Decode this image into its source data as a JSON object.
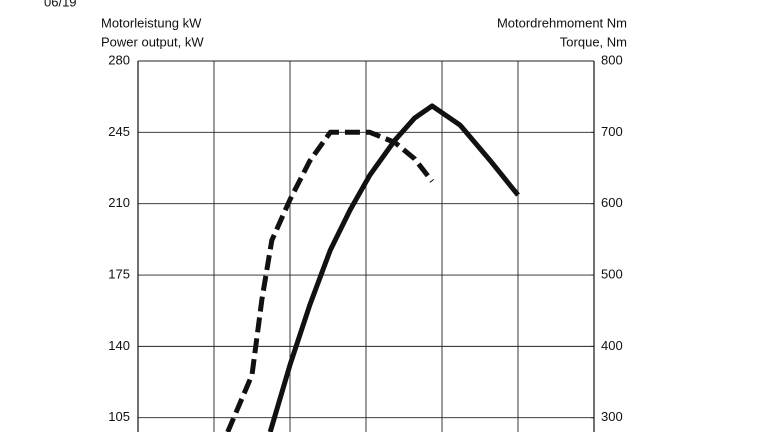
{
  "chart_data": {
    "type": "line",
    "date_label": "06/19",
    "y_label": [
      "Motorleistung kW",
      "Power output, kW"
    ],
    "y2_label": [
      "Motordrehmoment Nm",
      "Torque, Nm"
    ],
    "xlim": [
      0,
      6
    ],
    "xticks": [
      0,
      1,
      2,
      3,
      4,
      5,
      6
    ],
    "ylim": [
      98,
      280
    ],
    "yticks": [
      105,
      140,
      175,
      210,
      245,
      280
    ],
    "y2lim": [
      280,
      800
    ],
    "y2ticks": [
      300,
      400,
      500,
      600,
      700,
      800
    ],
    "grid": true,
    "series": [
      {
        "name": "Power output",
        "color": "#111111",
        "dashed": true,
        "axis": "y",
        "x": [
          1.18,
          1.5,
          1.63,
          1.76,
          2.0,
          2.26,
          2.53,
          3.05,
          3.38,
          3.64,
          3.87
        ],
        "values": [
          98,
          126,
          163,
          192,
          212,
          231,
          245,
          245,
          240,
          232,
          221
        ]
      },
      {
        "name": "Torque",
        "color": "#111111",
        "dashed": false,
        "axis": "y2",
        "x": [
          1.74,
          2.0,
          2.26,
          2.53,
          2.79,
          3.05,
          3.38,
          3.64,
          3.87,
          4.24,
          4.63,
          5.0
        ],
        "values": [
          280,
          374,
          458,
          535,
          591,
          640,
          689,
          720,
          737,
          710,
          661,
          612
        ]
      }
    ]
  }
}
